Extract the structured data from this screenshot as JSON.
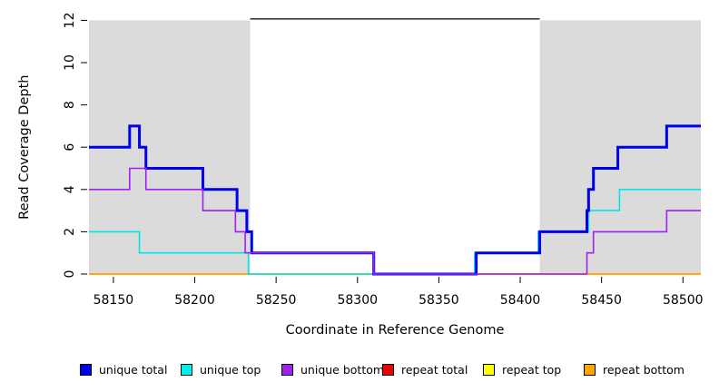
{
  "figure": {
    "background": "#ffffff"
  },
  "chart_data": {
    "type": "line",
    "subtype": "step-coverage",
    "title": "",
    "xlabel": "Coordinate in Reference Genome",
    "ylabel": "Read Coverage Depth",
    "xlim": [
      58135,
      58511
    ],
    "ylim": [
      0,
      12
    ],
    "x_ticks": [
      58150,
      58200,
      58250,
      58300,
      58350,
      58400,
      58450,
      58500
    ],
    "y_ticks": [
      0,
      2,
      4,
      6,
      8,
      10,
      12
    ],
    "grid": "off",
    "legend_position": "bottom",
    "region_color": "#dbdbdb",
    "regions": [
      {
        "name": "repeat-region-left",
        "x1": 58135,
        "x2": 58234
      },
      {
        "name": "repeat-region-right",
        "x1": 58412,
        "x2": 58511
      }
    ],
    "top_segment": {
      "name": "unique-region-marker",
      "x1": 58234,
      "x2": 58412,
      "y": 12,
      "color": "#000000"
    },
    "series": [
      {
        "name": "repeat total",
        "key": "repeat-total",
        "color": "#ee0000",
        "width": 1.6,
        "steps": [
          [
            58135,
            0
          ]
        ]
      },
      {
        "name": "repeat top",
        "key": "repeat-top",
        "color": "#ffff00",
        "width": 1.6,
        "steps": [
          [
            58135,
            0
          ]
        ]
      },
      {
        "name": "repeat bottom",
        "key": "repeat-bottom",
        "color": "#ffa500",
        "width": 1.6,
        "steps": [
          [
            58135,
            0
          ]
        ]
      },
      {
        "name": "unique top",
        "key": "unique-top",
        "color": "#00e6e6",
        "width": 1.6,
        "steps": [
          [
            58135,
            2
          ],
          [
            58166,
            1
          ],
          [
            58233,
            0
          ],
          [
            58372,
            1
          ],
          [
            58411,
            2
          ],
          [
            58442,
            3
          ],
          [
            58461,
            4
          ]
        ]
      },
      {
        "name": "unique total",
        "key": "unique-total",
        "color": "#0000ee",
        "width": 3,
        "steps": [
          [
            58135,
            6
          ],
          [
            58160,
            7
          ],
          [
            58166,
            6
          ],
          [
            58170,
            5
          ],
          [
            58205,
            4
          ],
          [
            58226,
            3
          ],
          [
            58232,
            2
          ],
          [
            58235,
            1
          ],
          [
            58310,
            0
          ],
          [
            58373,
            1
          ],
          [
            58412,
            2
          ],
          [
            58441,
            3
          ],
          [
            58442,
            4
          ],
          [
            58445,
            5
          ],
          [
            58460,
            6
          ],
          [
            58490,
            7
          ]
        ]
      },
      {
        "name": "unique bottom",
        "key": "unique-bottom",
        "color": "#a020f0",
        "width": 1.6,
        "steps": [
          [
            58135,
            4
          ],
          [
            58160,
            5
          ],
          [
            58170,
            4
          ],
          [
            58205,
            3
          ],
          [
            58225,
            2
          ],
          [
            58231,
            1
          ],
          [
            58310,
            0
          ],
          [
            58441,
            1
          ],
          [
            58445,
            2
          ],
          [
            58490,
            3
          ]
        ]
      }
    ],
    "legend": [
      {
        "label": "unique total",
        "color": "#0000f0"
      },
      {
        "label": "unique top",
        "color": "#00eeee"
      },
      {
        "label": "unique bottom",
        "color": "#a020f0"
      },
      {
        "label": "repeat total",
        "color": "#ee0000"
      },
      {
        "label": "repeat top",
        "color": "#ffff00"
      },
      {
        "label": "repeat bottom",
        "color": "#ffa500"
      }
    ]
  }
}
